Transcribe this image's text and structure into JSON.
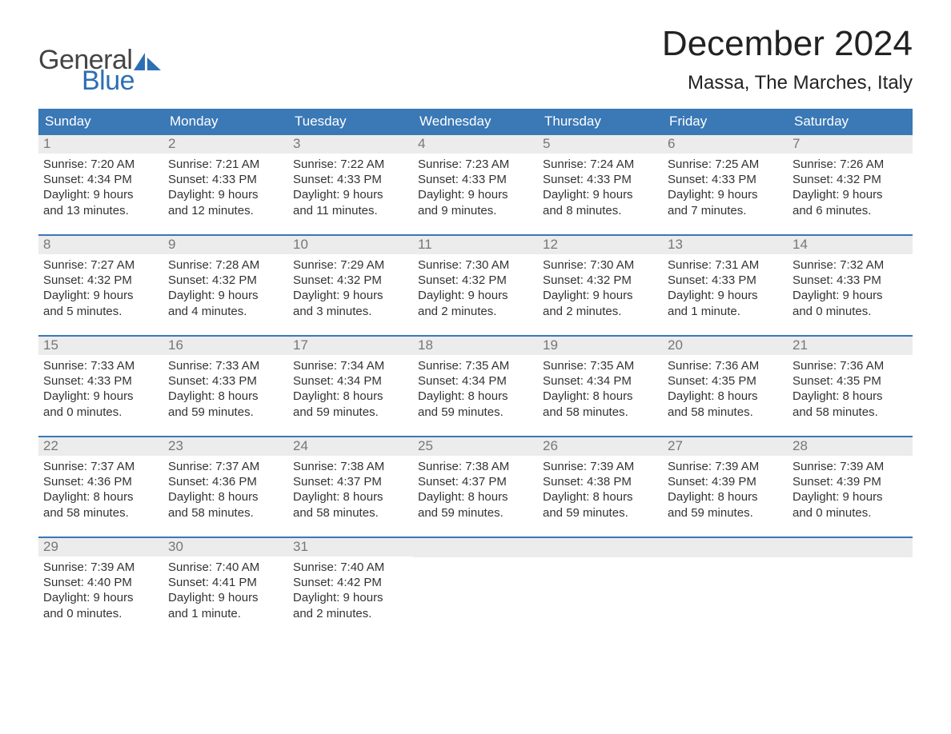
{
  "logo": {
    "general": "General",
    "blue": "Blue"
  },
  "title": "December 2024",
  "location": "Massa, The Marches, Italy",
  "colors": {
    "header_bg": "#3a78b6",
    "accent_blue": "#2d6fb3",
    "daynum_bg": "#ececec",
    "text": "#333333",
    "daynum_text": "#777777",
    "background": "#ffffff"
  },
  "typography": {
    "title_fontsize": 44,
    "location_fontsize": 24,
    "dayheader_fontsize": 17,
    "body_fontsize": 15
  },
  "day_headers": [
    "Sunday",
    "Monday",
    "Tuesday",
    "Wednesday",
    "Thursday",
    "Friday",
    "Saturday"
  ],
  "weeks": [
    [
      {
        "num": "1",
        "sunrise": "Sunrise: 7:20 AM",
        "sunset": "Sunset: 4:34 PM",
        "day1": "Daylight: 9 hours",
        "day2": "and 13 minutes."
      },
      {
        "num": "2",
        "sunrise": "Sunrise: 7:21 AM",
        "sunset": "Sunset: 4:33 PM",
        "day1": "Daylight: 9 hours",
        "day2": "and 12 minutes."
      },
      {
        "num": "3",
        "sunrise": "Sunrise: 7:22 AM",
        "sunset": "Sunset: 4:33 PM",
        "day1": "Daylight: 9 hours",
        "day2": "and 11 minutes."
      },
      {
        "num": "4",
        "sunrise": "Sunrise: 7:23 AM",
        "sunset": "Sunset: 4:33 PM",
        "day1": "Daylight: 9 hours",
        "day2": "and 9 minutes."
      },
      {
        "num": "5",
        "sunrise": "Sunrise: 7:24 AM",
        "sunset": "Sunset: 4:33 PM",
        "day1": "Daylight: 9 hours",
        "day2": "and 8 minutes."
      },
      {
        "num": "6",
        "sunrise": "Sunrise: 7:25 AM",
        "sunset": "Sunset: 4:33 PM",
        "day1": "Daylight: 9 hours",
        "day2": "and 7 minutes."
      },
      {
        "num": "7",
        "sunrise": "Sunrise: 7:26 AM",
        "sunset": "Sunset: 4:32 PM",
        "day1": "Daylight: 9 hours",
        "day2": "and 6 minutes."
      }
    ],
    [
      {
        "num": "8",
        "sunrise": "Sunrise: 7:27 AM",
        "sunset": "Sunset: 4:32 PM",
        "day1": "Daylight: 9 hours",
        "day2": "and 5 minutes."
      },
      {
        "num": "9",
        "sunrise": "Sunrise: 7:28 AM",
        "sunset": "Sunset: 4:32 PM",
        "day1": "Daylight: 9 hours",
        "day2": "and 4 minutes."
      },
      {
        "num": "10",
        "sunrise": "Sunrise: 7:29 AM",
        "sunset": "Sunset: 4:32 PM",
        "day1": "Daylight: 9 hours",
        "day2": "and 3 minutes."
      },
      {
        "num": "11",
        "sunrise": "Sunrise: 7:30 AM",
        "sunset": "Sunset: 4:32 PM",
        "day1": "Daylight: 9 hours",
        "day2": "and 2 minutes."
      },
      {
        "num": "12",
        "sunrise": "Sunrise: 7:30 AM",
        "sunset": "Sunset: 4:32 PM",
        "day1": "Daylight: 9 hours",
        "day2": "and 2 minutes."
      },
      {
        "num": "13",
        "sunrise": "Sunrise: 7:31 AM",
        "sunset": "Sunset: 4:33 PM",
        "day1": "Daylight: 9 hours",
        "day2": "and 1 minute."
      },
      {
        "num": "14",
        "sunrise": "Sunrise: 7:32 AM",
        "sunset": "Sunset: 4:33 PM",
        "day1": "Daylight: 9 hours",
        "day2": "and 0 minutes."
      }
    ],
    [
      {
        "num": "15",
        "sunrise": "Sunrise: 7:33 AM",
        "sunset": "Sunset: 4:33 PM",
        "day1": "Daylight: 9 hours",
        "day2": "and 0 minutes."
      },
      {
        "num": "16",
        "sunrise": "Sunrise: 7:33 AM",
        "sunset": "Sunset: 4:33 PM",
        "day1": "Daylight: 8 hours",
        "day2": "and 59 minutes."
      },
      {
        "num": "17",
        "sunrise": "Sunrise: 7:34 AM",
        "sunset": "Sunset: 4:34 PM",
        "day1": "Daylight: 8 hours",
        "day2": "and 59 minutes."
      },
      {
        "num": "18",
        "sunrise": "Sunrise: 7:35 AM",
        "sunset": "Sunset: 4:34 PM",
        "day1": "Daylight: 8 hours",
        "day2": "and 59 minutes."
      },
      {
        "num": "19",
        "sunrise": "Sunrise: 7:35 AM",
        "sunset": "Sunset: 4:34 PM",
        "day1": "Daylight: 8 hours",
        "day2": "and 58 minutes."
      },
      {
        "num": "20",
        "sunrise": "Sunrise: 7:36 AM",
        "sunset": "Sunset: 4:35 PM",
        "day1": "Daylight: 8 hours",
        "day2": "and 58 minutes."
      },
      {
        "num": "21",
        "sunrise": "Sunrise: 7:36 AM",
        "sunset": "Sunset: 4:35 PM",
        "day1": "Daylight: 8 hours",
        "day2": "and 58 minutes."
      }
    ],
    [
      {
        "num": "22",
        "sunrise": "Sunrise: 7:37 AM",
        "sunset": "Sunset: 4:36 PM",
        "day1": "Daylight: 8 hours",
        "day2": "and 58 minutes."
      },
      {
        "num": "23",
        "sunrise": "Sunrise: 7:37 AM",
        "sunset": "Sunset: 4:36 PM",
        "day1": "Daylight: 8 hours",
        "day2": "and 58 minutes."
      },
      {
        "num": "24",
        "sunrise": "Sunrise: 7:38 AM",
        "sunset": "Sunset: 4:37 PM",
        "day1": "Daylight: 8 hours",
        "day2": "and 58 minutes."
      },
      {
        "num": "25",
        "sunrise": "Sunrise: 7:38 AM",
        "sunset": "Sunset: 4:37 PM",
        "day1": "Daylight: 8 hours",
        "day2": "and 59 minutes."
      },
      {
        "num": "26",
        "sunrise": "Sunrise: 7:39 AM",
        "sunset": "Sunset: 4:38 PM",
        "day1": "Daylight: 8 hours",
        "day2": "and 59 minutes."
      },
      {
        "num": "27",
        "sunrise": "Sunrise: 7:39 AM",
        "sunset": "Sunset: 4:39 PM",
        "day1": "Daylight: 8 hours",
        "day2": "and 59 minutes."
      },
      {
        "num": "28",
        "sunrise": "Sunrise: 7:39 AM",
        "sunset": "Sunset: 4:39 PM",
        "day1": "Daylight: 9 hours",
        "day2": "and 0 minutes."
      }
    ],
    [
      {
        "num": "29",
        "sunrise": "Sunrise: 7:39 AM",
        "sunset": "Sunset: 4:40 PM",
        "day1": "Daylight: 9 hours",
        "day2": "and 0 minutes."
      },
      {
        "num": "30",
        "sunrise": "Sunrise: 7:40 AM",
        "sunset": "Sunset: 4:41 PM",
        "day1": "Daylight: 9 hours",
        "day2": "and 1 minute."
      },
      {
        "num": "31",
        "sunrise": "Sunrise: 7:40 AM",
        "sunset": "Sunset: 4:42 PM",
        "day1": "Daylight: 9 hours",
        "day2": "and 2 minutes."
      },
      {
        "empty": true
      },
      {
        "empty": true
      },
      {
        "empty": true
      },
      {
        "empty": true
      }
    ]
  ]
}
